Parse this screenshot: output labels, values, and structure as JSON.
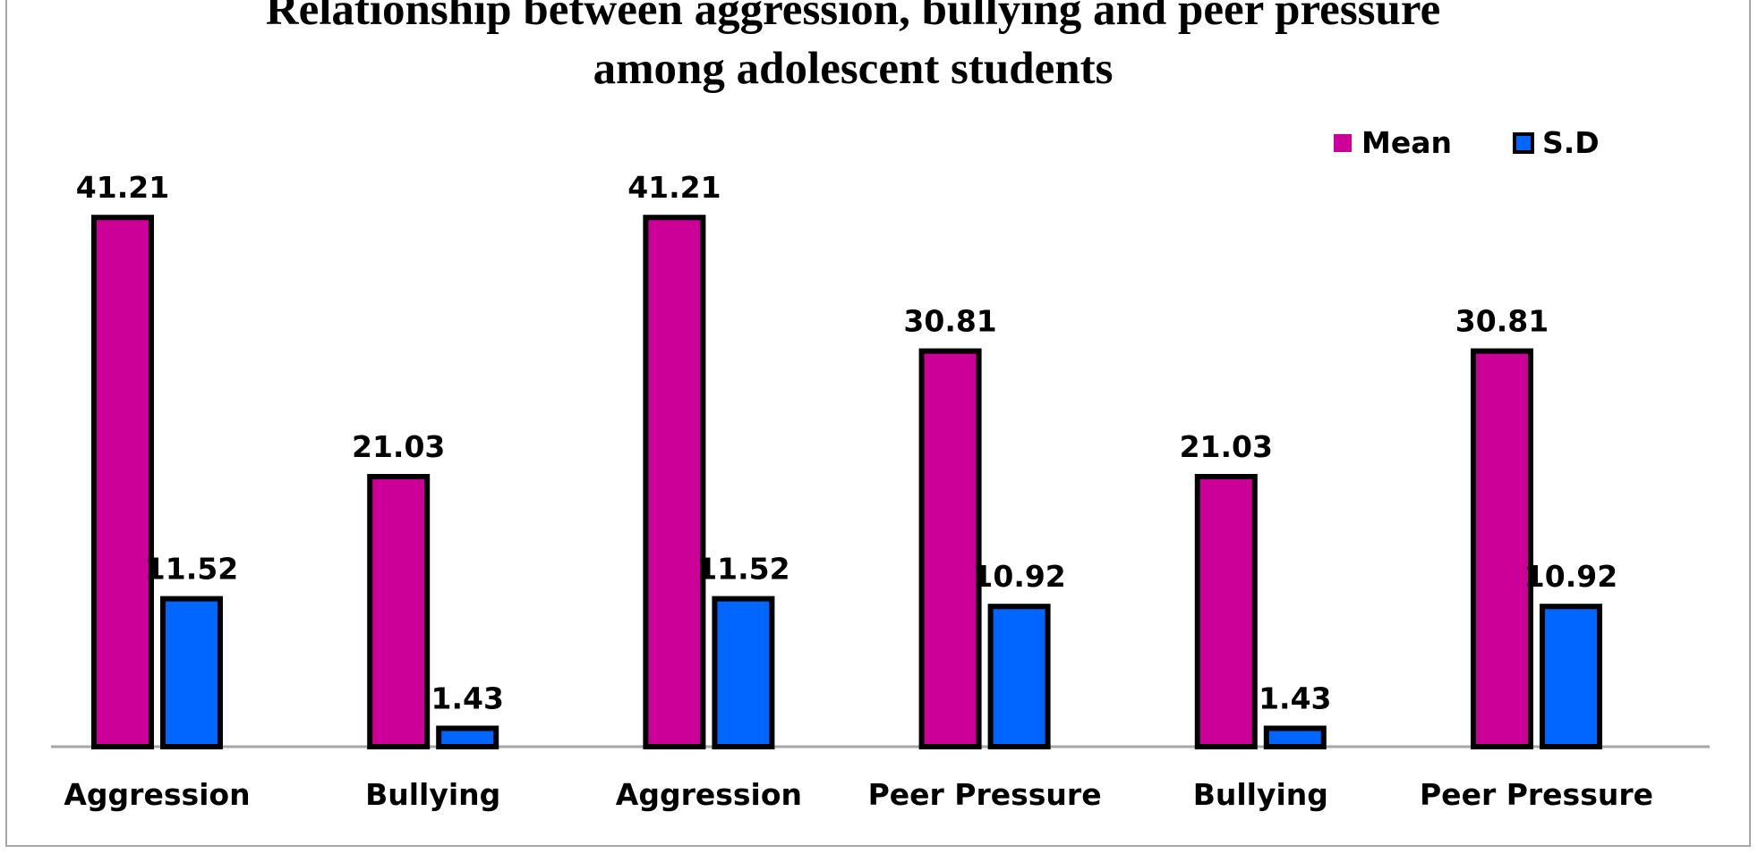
{
  "chart_data": {
    "type": "bar",
    "title_line1": "Relationship between aggression, bullying and peer pressure",
    "title_line2": "among adolescent students",
    "categories": [
      "Aggression",
      "Bullying",
      "Aggression",
      "Peer Pressure",
      "Bullying",
      "Peer Pressure"
    ],
    "series": [
      {
        "name": "Mean",
        "values": [
          41.21,
          21.03,
          41.21,
          30.81,
          21.03,
          30.81
        ],
        "color": "#cc0099"
      },
      {
        "name": "S.D",
        "values": [
          11.52,
          1.43,
          11.52,
          10.92,
          1.43,
          10.92
        ],
        "color": "#0066ff"
      }
    ],
    "data_labels": true,
    "ylim": [
      0,
      45
    ],
    "grid": false,
    "legend_position": "top-right",
    "bar_outline_color": "#000000",
    "axis_color": "#a6a6a6"
  }
}
